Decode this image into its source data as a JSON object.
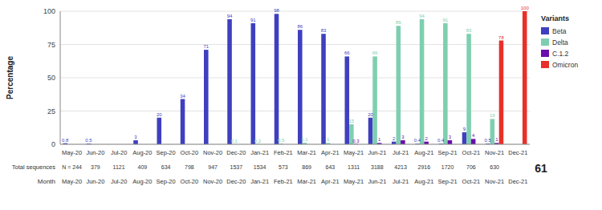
{
  "chart_data": {
    "type": "bar",
    "ylabel": "Percentage",
    "xlabel": "Month",
    "categories": [
      "May-20",
      "Jun-20",
      "Jul-20",
      "Aug-20",
      "Sep-20",
      "Oct-20",
      "Nov-20",
      "Dec-20",
      "Jan-21",
      "Feb-21",
      "Mar-21",
      "Apr-21",
      "May-21",
      "Jun-21",
      "Jul-21",
      "Aug-21",
      "Sep-21",
      "Oct-21",
      "Nov-21",
      "Dec-21"
    ],
    "series": [
      {
        "name": "Beta",
        "color": "#3f3fbf",
        "values": [
          0.8,
          0.5,
          0,
          3,
          20,
          34,
          71,
          94,
          91,
          98,
          86,
          83,
          66,
          20,
          2,
          0.4,
          0.4,
          9,
          0.5,
          0
        ],
        "value_labels": [
          "0.8",
          "0.5",
          null,
          "3",
          "20",
          "34",
          "71",
          "94",
          "91",
          "98",
          "86",
          "83",
          "66",
          "20",
          "2",
          "0.4",
          "0.4",
          "9",
          "0.5",
          null
        ]
      },
      {
        "name": "Delta",
        "color": "#7ecfb0",
        "values": [
          0,
          0,
          0,
          0,
          0,
          0,
          0,
          0.1,
          0.2,
          0.5,
          1.1,
          1,
          15,
          66,
          89,
          94,
          91,
          83,
          19,
          0
        ],
        "value_labels": [
          null,
          null,
          null,
          null,
          null,
          null,
          null,
          "0.1",
          "0.2",
          "0.5",
          "1.1",
          "1",
          "15",
          "66",
          "89",
          "94",
          "91",
          "83",
          "19",
          null
        ]
      },
      {
        "name": "C.1.2",
        "color": "#6a0dad",
        "values": [
          0,
          0,
          0,
          0,
          0,
          0,
          0,
          0,
          0,
          0,
          0,
          0,
          0.3,
          1,
          3,
          2,
          3,
          4,
          1,
          0
        ],
        "value_labels": [
          null,
          null,
          null,
          null,
          null,
          null,
          null,
          null,
          null,
          null,
          null,
          null,
          "0.3",
          "1",
          "3",
          "2",
          "3",
          "4",
          "1",
          null
        ]
      },
      {
        "name": "Omicron",
        "color": "#e8302a",
        "values": [
          0,
          0,
          0,
          0,
          0,
          0,
          0,
          0,
          0,
          0,
          0,
          0,
          0,
          0,
          0,
          0,
          0,
          0,
          78,
          100
        ],
        "value_labels": [
          null,
          null,
          null,
          null,
          null,
          null,
          null,
          null,
          null,
          null,
          null,
          null,
          null,
          null,
          null,
          null,
          null,
          null,
          "78",
          "100"
        ]
      }
    ],
    "ylim": [
      0,
      100
    ],
    "yticks": [
      0,
      25,
      50,
      75,
      100
    ],
    "grid": true,
    "legend": "right",
    "legend_title": "Variants",
    "data_labels": true,
    "n_labels_title": "Total sequences",
    "n_labels": [
      "N = 244",
      "379",
      "1121",
      "409",
      "634",
      "798",
      "947",
      "1537",
      "1534",
      "573",
      "869",
      "643",
      "1311",
      "3188",
      "4213",
      "2916",
      "1720",
      "706",
      "630",
      null
    ],
    "annotations": [
      "61"
    ]
  }
}
